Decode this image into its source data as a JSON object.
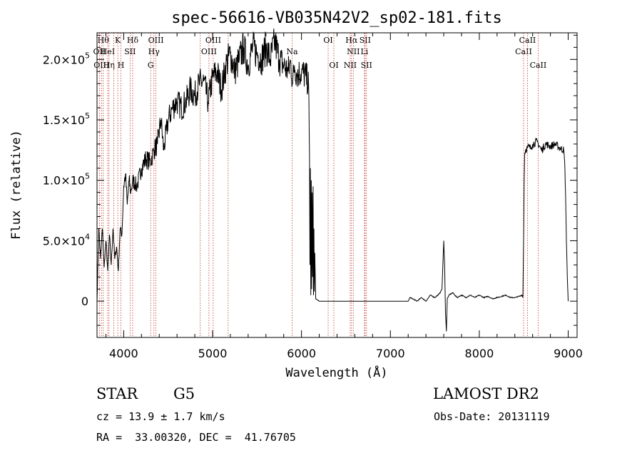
{
  "chart_data": {
    "type": "line",
    "title": "spec-56616-VB035N42V2_sp02-181.fits",
    "xlabel": "Wavelength (Å)",
    "ylabel": "Flux (relative)",
    "xlim": [
      3700,
      9100
    ],
    "ylim": [
      -30000,
      222000
    ],
    "x_ticks": [
      4000,
      5000,
      6000,
      7000,
      8000,
      9000
    ],
    "x_tick_labels": [
      "4000",
      "5000",
      "6000",
      "7000",
      "8000",
      "9000"
    ],
    "y_ticks": [
      0,
      50000,
      100000,
      150000,
      200000
    ],
    "y_tick_labels": [
      {
        "mant": "0",
        "exp": ""
      },
      {
        "mant": "5.0×10",
        "exp": "4"
      },
      {
        "mant": "1.0×10",
        "exp": "5"
      },
      {
        "mant": "1.5×10",
        "exp": "5"
      },
      {
        "mant": "2.0×10",
        "exp": "5"
      }
    ],
    "series": [
      {
        "x": [
          3700,
          3720,
          3740,
          3760,
          3780,
          3800,
          3820,
          3840,
          3860,
          3880,
          3900,
          3920,
          3940,
          3960,
          3980,
          4000,
          4020,
          4040,
          4060,
          4080,
          4100,
          4150,
          4200,
          4250,
          4300,
          4340,
          4380,
          4420,
          4450,
          4500,
          4550,
          4600,
          4650,
          4700,
          4750,
          4800,
          4850,
          4900,
          4950,
          5000,
          5050,
          5100,
          5150,
          5200,
          5250,
          5300,
          5350,
          5400,
          5450,
          5500,
          5550,
          5600,
          5650,
          5700,
          5750,
          5800,
          5850,
          5880,
          5900,
          5920,
          5950,
          6000,
          6050,
          6080,
          6090,
          6095,
          6100,
          6105,
          6110,
          6115,
          6120,
          6125,
          6130,
          6135,
          6140,
          6145,
          6150,
          6160,
          6200,
          6500,
          7000,
          7200,
          7220,
          7250,
          7300,
          7350,
          7400,
          7450,
          7500,
          7550,
          7580,
          7600,
          7610,
          7620,
          7630,
          7640,
          7660,
          7700,
          7750,
          7800,
          7850,
          7900,
          7950,
          8000,
          8050,
          8100,
          8150,
          8200,
          8250,
          8300,
          8350,
          8400,
          8450,
          8480,
          8490,
          8500,
          8505,
          8510,
          8520,
          8540,
          8560,
          8580,
          8600,
          8650,
          8700,
          8750,
          8800,
          8850,
          8900,
          8950,
          8960,
          8970,
          8980,
          8990,
          9000
        ],
        "y": [
          0,
          60000,
          35000,
          60000,
          28000,
          50000,
          25000,
          55000,
          30000,
          60000,
          35000,
          45000,
          25000,
          60000,
          55000,
          95000,
          105000,
          80000,
          100000,
          90000,
          100000,
          95000,
          110000,
          118000,
          115000,
          125000,
          130000,
          150000,
          125000,
          150000,
          160000,
          165000,
          160000,
          165000,
          175000,
          170000,
          180000,
          182000,
          165000,
          185000,
          190000,
          175000,
          195000,
          205000,
          190000,
          200000,
          210000,
          195000,
          210000,
          205000,
          200000,
          210000,
          200000,
          215000,
          200000,
          195000,
          190000,
          198000,
          180000,
          195000,
          188000,
          190000,
          186000,
          180000,
          120000,
          30000,
          110000,
          5000,
          100000,
          10000,
          90000,
          20000,
          95000,
          5000,
          60000,
          8000,
          40000,
          2000,
          0,
          0,
          0,
          0,
          3000,
          2000,
          0,
          3000,
          0,
          5000,
          3000,
          6000,
          10000,
          50000,
          30000,
          -10000,
          -25000,
          2000,
          5000,
          7000,
          3000,
          5000,
          3000,
          5000,
          3000,
          5000,
          3000,
          4000,
          2000,
          3000,
          4000,
          5000,
          3000,
          3000,
          4000,
          5000,
          3000,
          60000,
          100000,
          122000,
          125000,
          127000,
          128000,
          126000,
          130000,
          132000,
          125000,
          130000,
          128000,
          130000,
          127000,
          125000,
          115000,
          90000,
          50000,
          20000,
          0
        ]
      }
    ],
    "lines": [
      {
        "w": 3770,
        "name": "Hθ",
        "row": 0
      },
      {
        "w": 3727,
        "name": "OII",
        "row": 1
      },
      {
        "w": 3750,
        "name": "OIII",
        "row": 2
      },
      {
        "w": 3820,
        "name": "HeI",
        "row": 1
      },
      {
        "w": 3835,
        "name": "Hη",
        "row": 2
      },
      {
        "w": 3889,
        "name": "",
        "row": 0
      },
      {
        "w": 3934,
        "name": "K",
        "row": 0
      },
      {
        "w": 3969,
        "name": "H",
        "row": 2
      },
      {
        "w": 4072,
        "name": "SII",
        "row": 1
      },
      {
        "w": 4101,
        "name": "Hδ",
        "row": 0
      },
      {
        "w": 4304,
        "name": "G",
        "row": 2
      },
      {
        "w": 4340,
        "name": "Hγ",
        "row": 1
      },
      {
        "w": 4363,
        "name": "OIII",
        "row": 0
      },
      {
        "w": 4861,
        "name": "",
        "row": 0
      },
      {
        "w": 4959,
        "name": "OIII",
        "row": 1
      },
      {
        "w": 5007,
        "name": "OIII",
        "row": 0
      },
      {
        "w": 5175,
        "name": "",
        "row": 0
      },
      {
        "w": 5894,
        "name": "Na",
        "row": 1
      },
      {
        "w": 6300,
        "name": "OI",
        "row": 0
      },
      {
        "w": 6364,
        "name": "OI",
        "row": 2
      },
      {
        "w": 6548,
        "name": "NII",
        "row": 2
      },
      {
        "w": 6563,
        "name": "Hα",
        "row": 0
      },
      {
        "w": 6583,
        "name": "NII",
        "row": 1
      },
      {
        "w": 6708,
        "name": "Li",
        "row": 1
      },
      {
        "w": 6716,
        "name": "SII",
        "row": 0
      },
      {
        "w": 6731,
        "name": "SII",
        "row": 2
      },
      {
        "w": 8498,
        "name": "CaII",
        "row": 1
      },
      {
        "w": 8542,
        "name": "CaII",
        "row": 0
      },
      {
        "w": 8662,
        "name": "CaII",
        "row": 2
      }
    ]
  },
  "info": {
    "class_label": "STAR",
    "subclass": "G5",
    "survey": "LAMOST DR2",
    "cz": "cz = 13.9 ± 1.7 km/s",
    "obs_date": "Obs-Date: 20131119",
    "coords": "RA =  33.00320, DEC =  41.76705"
  }
}
